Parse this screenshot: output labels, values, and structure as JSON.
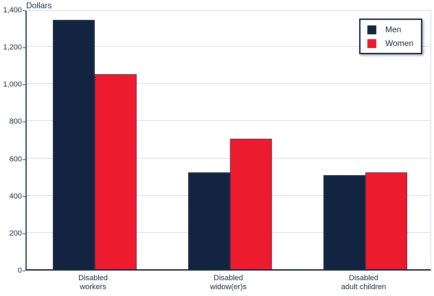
{
  "chart_data": {
    "type": "bar",
    "title": "",
    "ylabel": "Dollars",
    "xlabel": "",
    "categories": [
      "Disabled\nworkers",
      "Disabled\nwidow(er)s",
      "Disabled\nadult children"
    ],
    "series": [
      {
        "name": "Men",
        "color": "#122440",
        "values": [
          1340,
          520,
          505
        ]
      },
      {
        "name": "Women",
        "color": "#EC1B2E",
        "values": [
          1050,
          700,
          520
        ]
      }
    ],
    "ylim": [
      0,
      1400
    ],
    "ytick_step": 200,
    "ytick_labels": [
      "0",
      "200",
      "400",
      "600",
      "800",
      "1,000",
      "1,200",
      "1,400"
    ],
    "grid": true,
    "legend_position": "top-right"
  },
  "colors": {
    "text": "#152642",
    "gridline": "#d8dbe3",
    "axis": "#16243f",
    "men_bar": "#122440",
    "women_bar": "#EC1B2E",
    "background": "#ffffff"
  }
}
